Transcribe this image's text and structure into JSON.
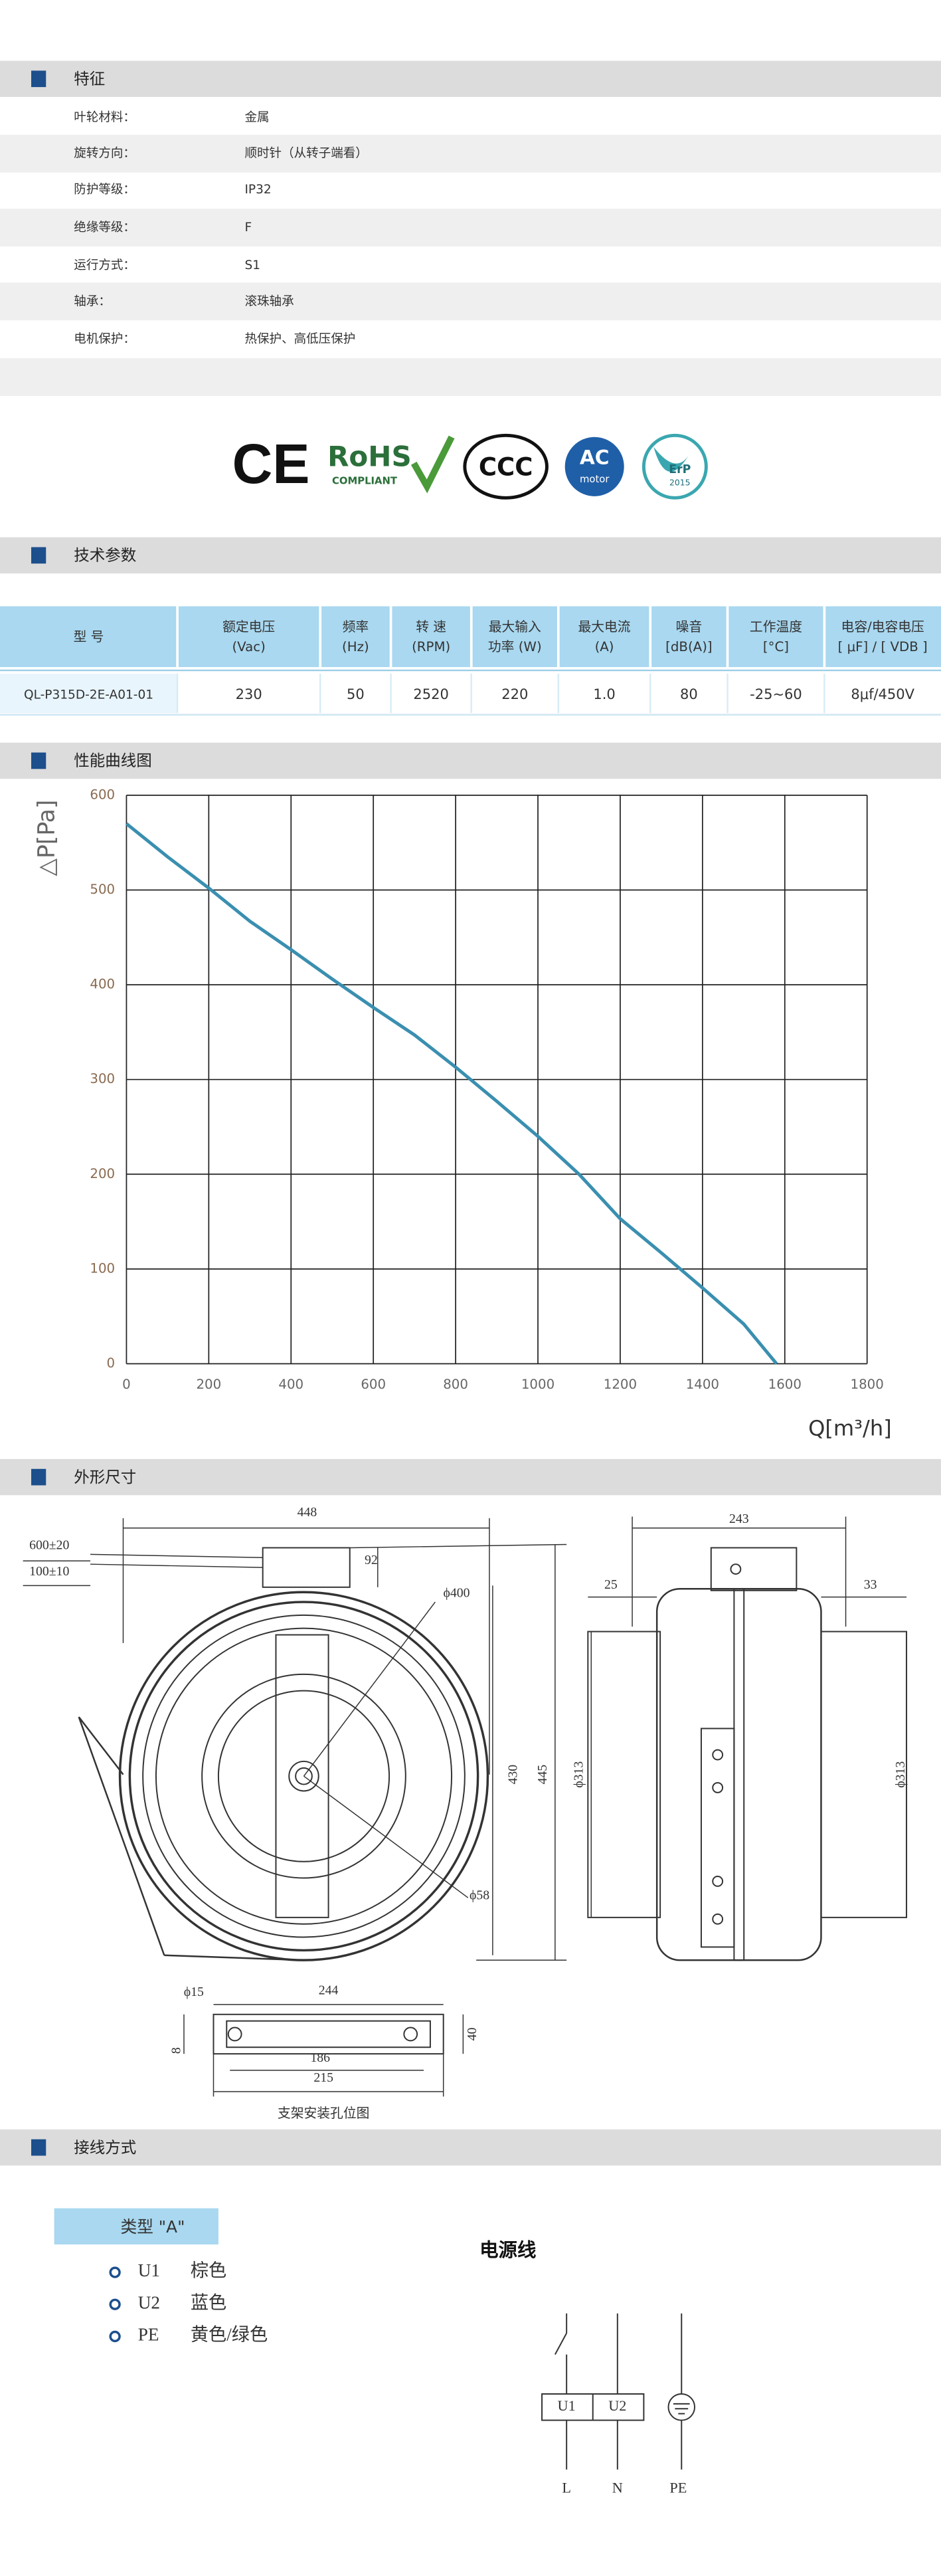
{
  "sections": {
    "features": "特征",
    "tech": "技术参数",
    "curve": "性能曲线图",
    "dimensions": "外形尺寸",
    "wiring": "接线方式"
  },
  "features": [
    {
      "label": "叶轮材料：",
      "value": "金属"
    },
    {
      "label": "旋转方向：",
      "value": "顺时针（从转子端看）"
    },
    {
      "label": "防护等级：",
      "value": "IP32"
    },
    {
      "label": "绝缘等级：",
      "value": "F"
    },
    {
      "label": "运行方式：",
      "value": "S1"
    },
    {
      "label": "轴承：",
      "value": "滚珠轴承"
    },
    {
      "label": "电机保护：",
      "value": "热保护、高低压保护"
    }
  ],
  "certifications": {
    "ce": "CE",
    "rohs": "RoHS",
    "rohs_sub": "COMPLIANT",
    "ccc": "CCC",
    "ac": "AC",
    "ac_sub": "motor",
    "erp": "ErP",
    "erp_sub": "2015"
  },
  "spec_table": {
    "headers": [
      [
        "型 号"
      ],
      [
        "额定电压",
        "(Vac)"
      ],
      [
        "频率",
        "(Hz)"
      ],
      [
        "转 速",
        "(RPM)"
      ],
      [
        "最大输入",
        "功率 (W)"
      ],
      [
        "最大电流",
        "(A)"
      ],
      [
        "噪音",
        "[dB(A)]"
      ],
      [
        "工作温度",
        "[°C]"
      ],
      [
        "电容/电容电压",
        "[ μF] / [ VDB ]"
      ]
    ],
    "rows": [
      [
        "QL-P315D-2E-A01-01",
        "230",
        "50",
        "2520",
        "220",
        "1.0",
        "80",
        "-25~60",
        "8μf/450V"
      ]
    ]
  },
  "chart_data": {
    "type": "line",
    "y_label": "△P[Pa]",
    "x_label": "Q[m³/h]",
    "x": [
      0,
      100,
      200,
      300,
      400,
      500,
      600,
      700,
      800,
      900,
      1000,
      1100,
      1200,
      1300,
      1400,
      1500,
      1580
    ],
    "series": [
      {
        "name": "QL-P315D-2E-A01-01",
        "color": "#3a8fb0",
        "values": [
          570,
          535,
          502,
          467,
          437,
          406,
          376,
          347,
          313,
          277,
          240,
          200,
          153,
          117,
          80,
          42,
          0
        ]
      }
    ],
    "xlim": [
      0,
      1800
    ],
    "ylim": [
      0,
      600
    ],
    "xticks": [
      0,
      200,
      400,
      600,
      800,
      1000,
      1200,
      1400,
      1600,
      1800
    ],
    "yticks": [
      0,
      100,
      200,
      300,
      400,
      500,
      600
    ],
    "grid": true
  },
  "dimensions": {
    "labels": [
      "448",
      "600±20",
      "100±10",
      "92",
      "ϕ400",
      "430",
      "445",
      "ϕ58",
      "243",
      "25",
      "33",
      "ϕ313",
      "ϕ313",
      "ϕ15",
      "244",
      "8",
      "40",
      "186",
      "215"
    ],
    "caption": "支架安装孔位图"
  },
  "wiring": {
    "type_label": "类型 \"A\"",
    "items": [
      {
        "code": "U1",
        "color": "棕色"
      },
      {
        "code": "U2",
        "color": "蓝色"
      },
      {
        "code": "PE",
        "color": "黄色/绿色"
      }
    ],
    "power_title": "电源线",
    "terminals": [
      "U1",
      "U2"
    ],
    "lines": [
      "L",
      "N",
      "PE"
    ]
  }
}
